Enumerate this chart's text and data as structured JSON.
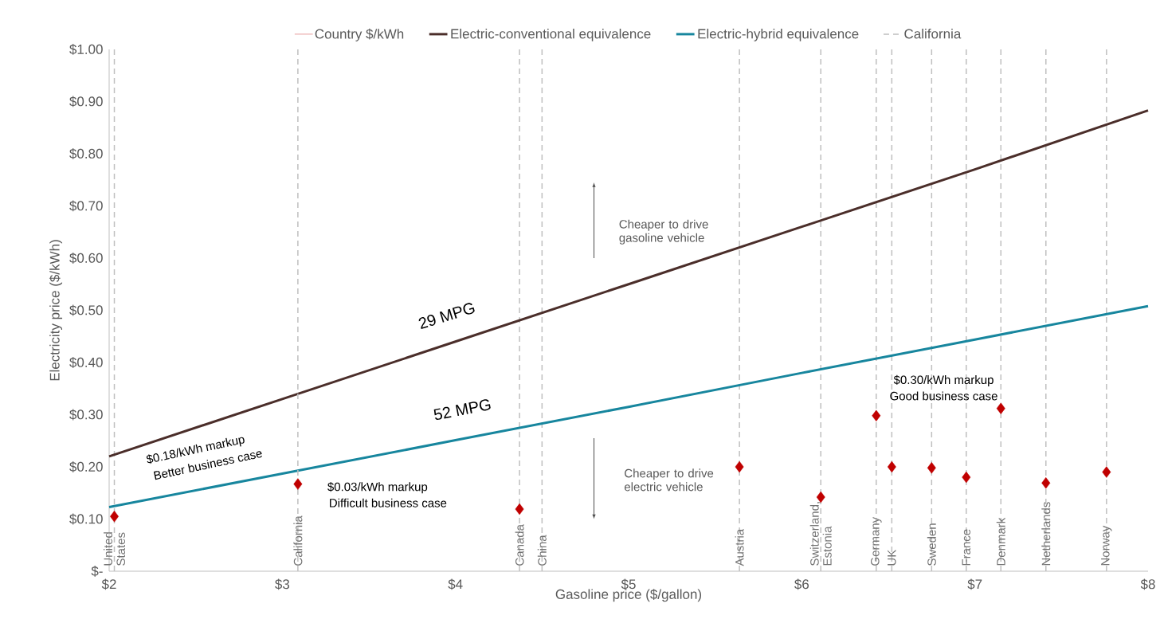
{
  "chart_data": {
    "type": "line",
    "xlabel": "Gasoline price ($/gallon)",
    "ylabel": "Electricity price ($/kWh)",
    "xlim": [
      2,
      8
    ],
    "ylim": [
      0,
      1
    ],
    "xticks": [
      {
        "value": 2,
        "label": "$2"
      },
      {
        "value": 3,
        "label": "$3"
      },
      {
        "value": 4,
        "label": "$4"
      },
      {
        "value": 5,
        "label": "$5"
      },
      {
        "value": 6,
        "label": "$6"
      },
      {
        "value": 7,
        "label": "$7"
      },
      {
        "value": 8,
        "label": "$8"
      }
    ],
    "yticks": [
      {
        "value": 0,
        "label": "$-"
      },
      {
        "value": 0.1,
        "label": "$0.10"
      },
      {
        "value": 0.2,
        "label": "$0.20"
      },
      {
        "value": 0.3,
        "label": "$0.30"
      },
      {
        "value": 0.4,
        "label": "$0.40"
      },
      {
        "value": 0.5,
        "label": "$0.50"
      },
      {
        "value": 0.6,
        "label": "$0.60"
      },
      {
        "value": 0.7,
        "label": "$0.70"
      },
      {
        "value": 0.8,
        "label": "$0.80"
      },
      {
        "value": 0.9,
        "label": "$0.90"
      },
      {
        "value": 1,
        "label": "$1.00"
      }
    ],
    "grid": false,
    "legend": "top",
    "series": [
      {
        "name": "Country $/kWh",
        "type": "scatter",
        "marker": "diamond",
        "color": "#c00000",
        "x": [
          2.03,
          3.09,
          4.37,
          5.64,
          6.11,
          6.43,
          6.52,
          6.75,
          6.95,
          7.15,
          7.41,
          7.76
        ],
        "values": [
          0.105,
          0.167,
          0.119,
          0.2,
          0.142,
          0.298,
          0.2,
          0.198,
          0.18,
          0.312,
          0.169,
          0.19
        ]
      },
      {
        "name": "Electric-conventional equivalence",
        "color": "#4b2e2a",
        "x": [
          2,
          3,
          4,
          5,
          6,
          7,
          8
        ],
        "values": [
          0.22,
          0.33,
          0.44,
          0.55,
          0.66,
          0.77,
          0.883
        ]
      },
      {
        "name": "Electric-hybrid equivalence",
        "color": "#17869e",
        "x": [
          2,
          3,
          4,
          5,
          6,
          7,
          8
        ],
        "values": [
          0.123,
          0.187,
          0.251,
          0.315,
          0.38,
          0.444,
          0.508
        ]
      },
      {
        "name": "California",
        "type": "line",
        "line_style": "dashed",
        "color": "#bfbfbf",
        "x": [
          3.09,
          3.09
        ],
        "values": [
          0,
          1
        ]
      }
    ],
    "ref_lines": [
      {
        "axis": "x",
        "value": 2.03,
        "label": "United States",
        "color": "#bfbfbf",
        "line_style": "dashed"
      },
      {
        "axis": "x",
        "value": 4.37,
        "label": "Canada",
        "color": "#bfbfbf",
        "line_style": "dashed"
      },
      {
        "axis": "x",
        "value": 4.5,
        "label": "China",
        "color": "#bfbfbf",
        "line_style": "dashed"
      },
      {
        "axis": "x",
        "value": 5.64,
        "label": "Austria",
        "color": "#bfbfbf",
        "line_style": "dashed"
      },
      {
        "axis": "x",
        "value": 6.11,
        "label": "Switzerland, Estonia",
        "color": "#bfbfbf",
        "line_style": "dashed"
      },
      {
        "axis": "x",
        "value": 6.43,
        "label": "Germany",
        "color": "#bfbfbf",
        "line_style": "dashed"
      },
      {
        "axis": "x",
        "value": 6.52,
        "label": "UK",
        "color": "#bfbfbf",
        "line_style": "dashed"
      },
      {
        "axis": "x",
        "value": 6.75,
        "label": "Sweden",
        "color": "#bfbfbf",
        "line_style": "dashed"
      },
      {
        "axis": "x",
        "value": 6.95,
        "label": "France",
        "color": "#bfbfbf",
        "line_style": "dashed"
      },
      {
        "axis": "x",
        "value": 7.15,
        "label": "Denmark",
        "color": "#bfbfbf",
        "line_style": "dashed"
      },
      {
        "axis": "x",
        "value": 7.41,
        "label": "Netherlands",
        "color": "#bfbfbf",
        "line_style": "dashed"
      },
      {
        "axis": "x",
        "value": 7.76,
        "label": "Norway",
        "color": "#bfbfbf",
        "line_style": "dashed"
      }
    ],
    "annotations": [
      "29 MPG",
      "52 MPG",
      "$0.18/kWh markup",
      "Better business case",
      "$0.03/kWh markup",
      "Difficult business case",
      "$0.30/kWh markup",
      "Good business case",
      "Cheaper to drive gasoline vehicle",
      "Cheaper to drive electric vehicle"
    ]
  }
}
